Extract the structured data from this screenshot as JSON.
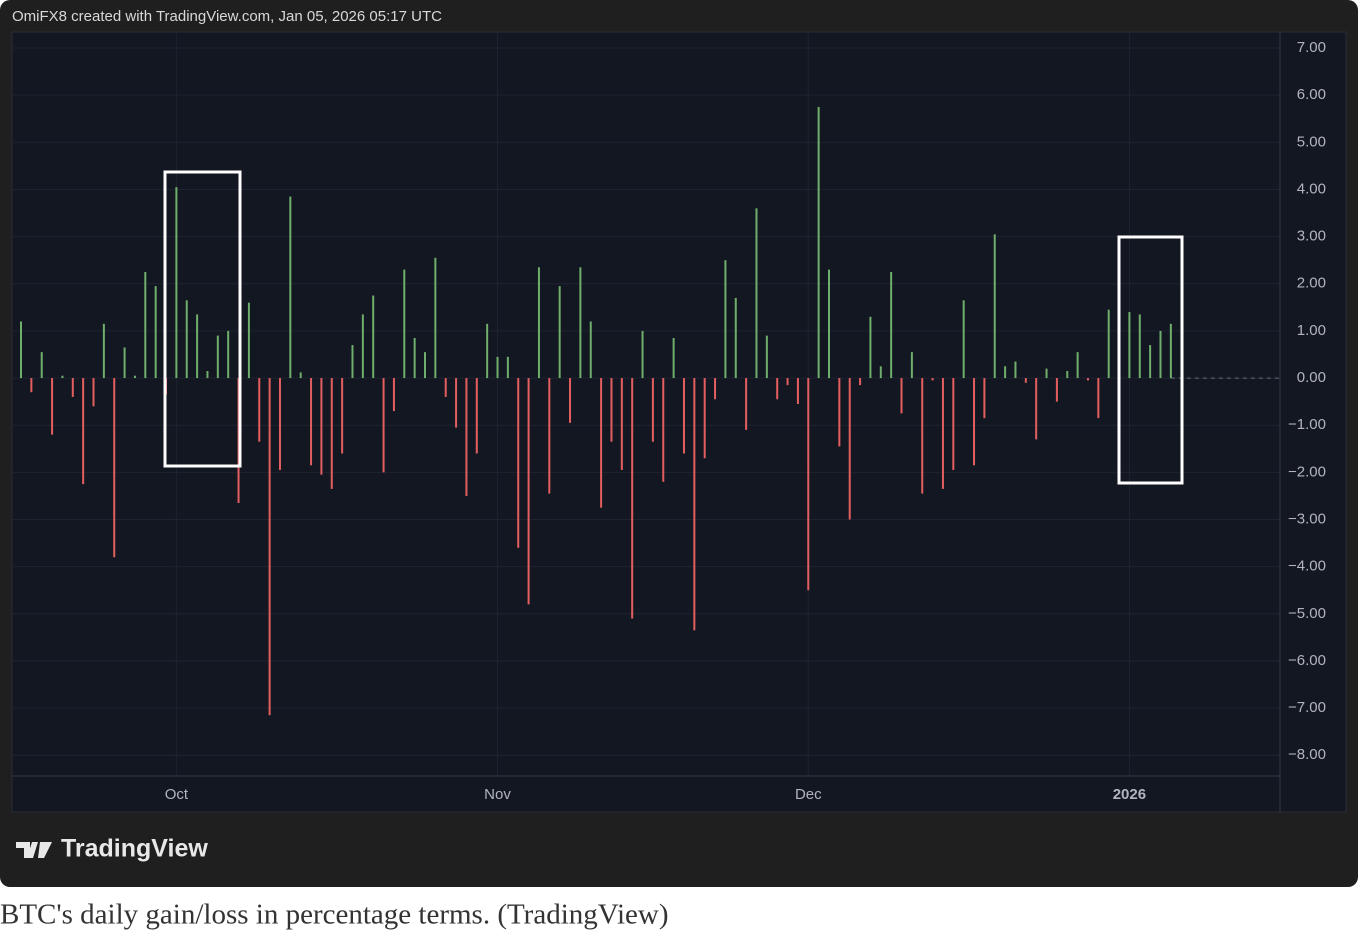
{
  "chart_data": {
    "type": "bar",
    "attribution": "OmiFX8 created with TradingView.com, Jan 05, 2026 05:17 UTC",
    "logo": "TradingView",
    "caption": "BTC's daily gain/loss in percentage terms. (TradingView)",
    "categories": [
      null,
      null,
      null,
      null,
      null,
      null,
      null,
      null,
      null,
      null,
      null,
      null,
      null,
      null,
      null,
      "Oct",
      null,
      null,
      null,
      null,
      null,
      null,
      null,
      null,
      null,
      null,
      null,
      null,
      null,
      null,
      null,
      null,
      null,
      null,
      null,
      null,
      null,
      null,
      null,
      null,
      null,
      null,
      null,
      null,
      null,
      null,
      "Nov",
      null,
      null,
      null,
      null,
      null,
      null,
      null,
      null,
      null,
      null,
      null,
      null,
      null,
      null,
      null,
      null,
      null,
      null,
      null,
      null,
      null,
      null,
      null,
      null,
      null,
      null,
      null,
      null,
      null,
      "Dec",
      null,
      null,
      null,
      null,
      null,
      null,
      null,
      null,
      null,
      null,
      null,
      null,
      null,
      null,
      null,
      null,
      null,
      null,
      null,
      null,
      null,
      null,
      null,
      null,
      null,
      null,
      null,
      null,
      null,
      null,
      "2026",
      null,
      null,
      null,
      null
    ],
    "values": [
      1.2,
      -0.3,
      0.55,
      -1.2,
      0.05,
      -0.4,
      -2.25,
      -0.6,
      1.15,
      -3.8,
      0.65,
      0.05,
      2.25,
      1.95,
      -0.35,
      4.05,
      1.65,
      1.35,
      0.15,
      0.9,
      1.0,
      -2.65,
      1.6,
      -1.35,
      -7.15,
      -1.95,
      3.85,
      0.12,
      -1.85,
      -2.05,
      -2.35,
      -1.6,
      0.7,
      1.35,
      1.75,
      -2.0,
      -0.7,
      2.3,
      0.85,
      0.55,
      2.55,
      -0.4,
      -1.05,
      -2.5,
      -1.6,
      1.15,
      0.45,
      0.45,
      -3.6,
      -4.8,
      2.35,
      -2.45,
      1.95,
      -0.95,
      2.35,
      1.2,
      -2.75,
      -1.35,
      -1.95,
      -5.1,
      1.0,
      -1.35,
      -2.2,
      0.85,
      -1.6,
      -5.35,
      -1.7,
      -0.45,
      2.5,
      1.7,
      -1.1,
      3.6,
      0.9,
      -0.45,
      -0.15,
      -0.55,
      -4.5,
      5.75,
      2.3,
      -1.45,
      -3.0,
      -0.15,
      1.3,
      0.25,
      2.25,
      -0.75,
      0.55,
      -2.45,
      -0.05,
      -2.35,
      -1.95,
      1.65,
      -1.85,
      -0.85,
      3.05,
      0.25,
      0.35,
      -0.1,
      -1.3,
      0.2,
      -0.5,
      0.15,
      0.55,
      -0.05,
      -0.85,
      1.45,
      -1.0,
      1.4,
      1.35,
      0.7,
      1.0,
      1.15
    ],
    "positive_color": "#6fae6b",
    "negative_color": "#e35f5f",
    "ylim": [
      -8.44,
      7.34
    ],
    "yticks": [
      {
        "value": 7,
        "label": "7.00"
      },
      {
        "value": 6,
        "label": "6.00"
      },
      {
        "value": 5,
        "label": "5.00"
      },
      {
        "value": 4,
        "label": "4.00"
      },
      {
        "value": 3,
        "label": "3.00"
      },
      {
        "value": 2,
        "label": "2.00"
      },
      {
        "value": 1,
        "label": "1.00"
      },
      {
        "value": 0,
        "label": "0.00"
      },
      {
        "value": -1,
        "label": "−1.00"
      },
      {
        "value": -2,
        "label": "−2.00"
      },
      {
        "value": -3,
        "label": "−3.00"
      },
      {
        "value": -4,
        "label": "−4.00"
      },
      {
        "value": -5,
        "label": "−5.00"
      },
      {
        "value": -6,
        "label": "−6.00"
      },
      {
        "value": -7,
        "label": "−7.00"
      },
      {
        "value": -8,
        "label": "−8.00"
      }
    ],
    "grid": true
  }
}
